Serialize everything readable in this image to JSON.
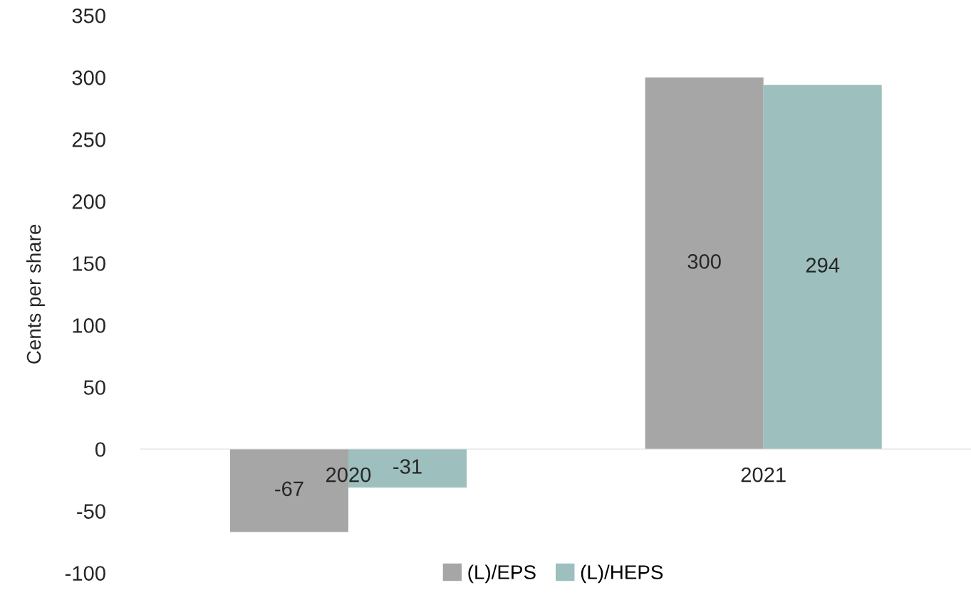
{
  "chart_data": {
    "type": "bar",
    "ylabel": "Cents per share",
    "categories": [
      "2020",
      "2021"
    ],
    "series": [
      {
        "name": "(L)/EPS",
        "color": "#a6a6a6",
        "values": [
          -67,
          300
        ]
      },
      {
        "name": "(L)/HEPS",
        "color": "#9dbfbd",
        "values": [
          -31,
          294
        ]
      }
    ],
    "ylim": [
      -100,
      350
    ],
    "yticks": [
      -100,
      -50,
      0,
      50,
      100,
      150,
      200,
      250,
      300,
      350
    ],
    "data_labels": true,
    "grid": false,
    "legend": "bottom"
  }
}
